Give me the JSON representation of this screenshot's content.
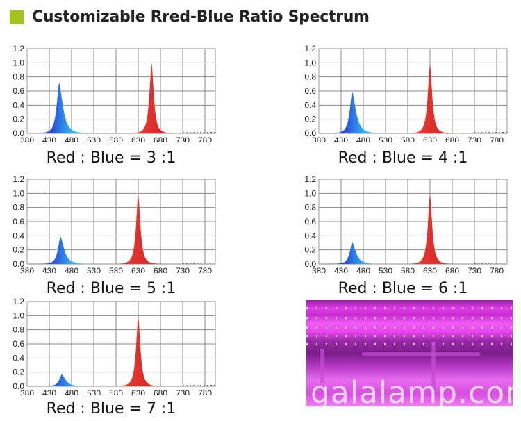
{
  "header": {
    "title": "Customizable Rred-Blue Ratio Spectrum",
    "accent_color": "#a6c31c"
  },
  "chart_data": [
    {
      "type": "area",
      "caption": "Red : Blue = 3 :1",
      "x_ticks": [
        "380",
        "430",
        "480",
        "530",
        "580",
        "630",
        "680",
        "730",
        "780"
      ],
      "y_ticks": [
        "0.0",
        "0.2",
        "0.4",
        "0.6",
        "0.8",
        "1.0",
        "1.2"
      ],
      "xlim": [
        380,
        805
      ],
      "ylim": [
        0,
        1.2
      ],
      "grid": true,
      "peaks": [
        {
          "color": "blue",
          "wavelength": 452,
          "value": 0.72
        },
        {
          "color": "red",
          "wavelength": 660,
          "value": 1.0
        }
      ]
    },
    {
      "type": "area",
      "caption": "Red : Blue = 4 :1",
      "x_ticks": [
        "380",
        "430",
        "480",
        "530",
        "580",
        "630",
        "680",
        "730",
        "780"
      ],
      "y_ticks": [
        "0.0",
        "0.2",
        "0.4",
        "0.6",
        "0.8",
        "1.0",
        "1.2"
      ],
      "xlim": [
        380,
        805
      ],
      "ylim": [
        0,
        1.2
      ],
      "grid": true,
      "peaks": [
        {
          "color": "blue",
          "wavelength": 455,
          "value": 0.59
        },
        {
          "color": "red",
          "wavelength": 630,
          "value": 1.0
        }
      ]
    },
    {
      "type": "area",
      "caption": "Red : Blue = 5 :1",
      "x_ticks": [
        "380",
        "430",
        "480",
        "530",
        "580",
        "630",
        "680",
        "730",
        "780"
      ],
      "y_ticks": [
        "0.0",
        "0.2",
        "0.4",
        "0.6",
        "0.8",
        "1.0",
        "1.2"
      ],
      "xlim": [
        380,
        805
      ],
      "ylim": [
        0,
        1.2
      ],
      "grid": true,
      "peaks": [
        {
          "color": "blue",
          "wavelength": 455,
          "value": 0.39
        },
        {
          "color": "red",
          "wavelength": 630,
          "value": 1.0
        }
      ]
    },
    {
      "type": "area",
      "caption": "Red : Blue = 6 :1",
      "x_ticks": [
        "380",
        "430",
        "480",
        "530",
        "580",
        "630",
        "680",
        "730",
        "780"
      ],
      "y_ticks": [
        "0.0",
        "0.2",
        "0.4",
        "0.6",
        "0.8",
        "1.0",
        "1.2"
      ],
      "xlim": [
        380,
        805
      ],
      "ylim": [
        0,
        1.2
      ],
      "grid": true,
      "peaks": [
        {
          "color": "blue",
          "wavelength": 455,
          "value": 0.31
        },
        {
          "color": "red",
          "wavelength": 630,
          "value": 1.0
        }
      ]
    },
    {
      "type": "area",
      "caption": "Red : Blue = 7 :1",
      "x_ticks": [
        "380",
        "430",
        "480",
        "530",
        "580",
        "630",
        "680",
        "730",
        "780"
      ],
      "y_ticks": [
        "0.0",
        "0.2",
        "0.4",
        "0.6",
        "0.8",
        "1.0",
        "1.2"
      ],
      "xlim": [
        380,
        805
      ],
      "ylim": [
        0,
        1.2
      ],
      "grid": true,
      "peaks": [
        {
          "color": "blue",
          "wavelength": 458,
          "value": 0.17
        },
        {
          "color": "red",
          "wavelength": 630,
          "value": 1.0
        }
      ]
    }
  ],
  "photo": {
    "watermark": "es.galalamp.com"
  }
}
